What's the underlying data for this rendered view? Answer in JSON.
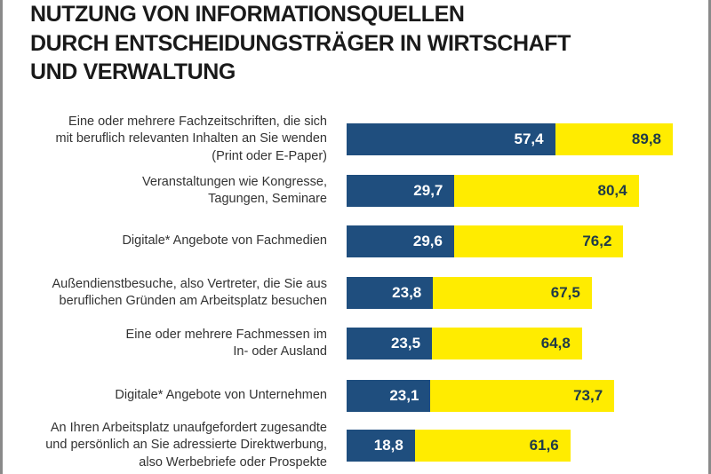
{
  "chart_data": {
    "type": "bar",
    "orientation": "horizontal",
    "title_lines": [
      "NUTZUNG VON INFORMATIONSQUELLEN",
      "DURCH ENTSCHEIDUNGSTRÄGER IN WIRTSCHAFT",
      "UND VERWALTUNG"
    ],
    "categories": [
      [
        "Eine oder mehrere Fachzeitschriften, die sich",
        "mit beruflich relevanten Inhalten an Sie wenden",
        "(Print oder E-Paper)"
      ],
      [
        "Veranstaltungen wie Kongresse,",
        "Tagungen, Seminare"
      ],
      [
        "Digitale* Angebote von Fachmedien"
      ],
      [
        "Außendienstbesuche, also Vertreter, die Sie aus",
        "beruflichen Gründen am Arbeitsplatz besuchen"
      ],
      [
        "Eine oder mehrere Fachmessen im",
        "In- oder Ausland"
      ],
      [
        "Digitale* Angebote von Unternehmen"
      ],
      [
        "An Ihren Arbeitsplatz unaufgefordert zugesandte",
        "und persönlich an Sie adressierte Direktwerbung,",
        "also Werbebriefe oder Prospekte"
      ]
    ],
    "series": [
      {
        "color": "#1f4e7e",
        "values": [
          57.4,
          29.7,
          29.6,
          23.8,
          23.5,
          23.1,
          18.8
        ],
        "labels": [
          "57,4",
          "29,7",
          "29,6",
          "23,8",
          "23,5",
          "23,1",
          "18,8"
        ]
      },
      {
        "color": "#ffec00",
        "values": [
          89.8,
          80.4,
          76.2,
          67.5,
          64.8,
          73.7,
          61.6
        ],
        "labels": [
          "89,8",
          "80,4",
          "76,2",
          "67,5",
          "64,8",
          "73,7",
          "61,6"
        ]
      }
    ],
    "overlay": true,
    "grid": false,
    "legend": "none"
  }
}
